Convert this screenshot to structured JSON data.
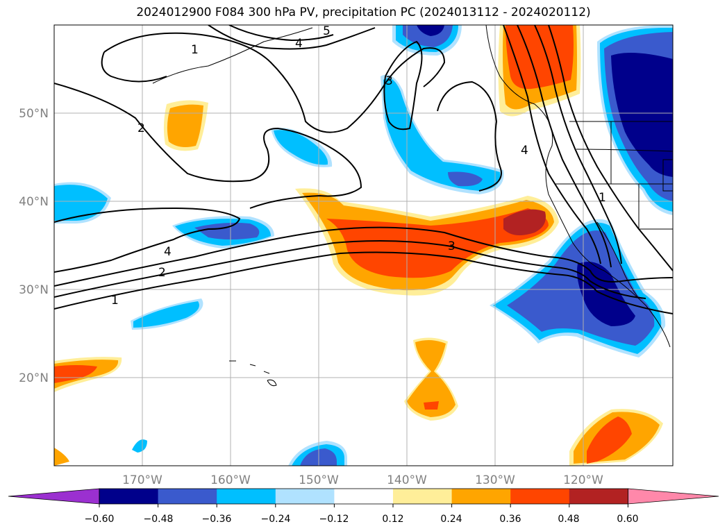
{
  "title": "2024012900 F084 300 hPa PV, precipitation PC (2024013112 - 2024020112)",
  "map": {
    "lat_ticks": [
      "50°N",
      "40°N",
      "30°N",
      "20°N"
    ],
    "lon_ticks": [
      "170°W",
      "160°W",
      "150°W",
      "140°W",
      "130°W",
      "120°W"
    ],
    "contour_labels": [
      "1",
      "2",
      "4",
      "2",
      "1",
      "3",
      "3",
      "4",
      "4",
      "5",
      "1"
    ]
  },
  "colorbar": {
    "ticks": [
      "−0.60",
      "−0.48",
      "−0.36",
      "−0.24",
      "−0.12",
      "0.12",
      "0.24",
      "0.36",
      "0.48",
      "0.60"
    ],
    "colors": [
      "#9b30d0",
      "#00008b",
      "#3a5acd",
      "#00bfff",
      "#b0e2ff",
      "#ffffff",
      "#ffee99",
      "#ffa500",
      "#ff4500",
      "#b22222",
      "#ff88aa"
    ]
  }
}
